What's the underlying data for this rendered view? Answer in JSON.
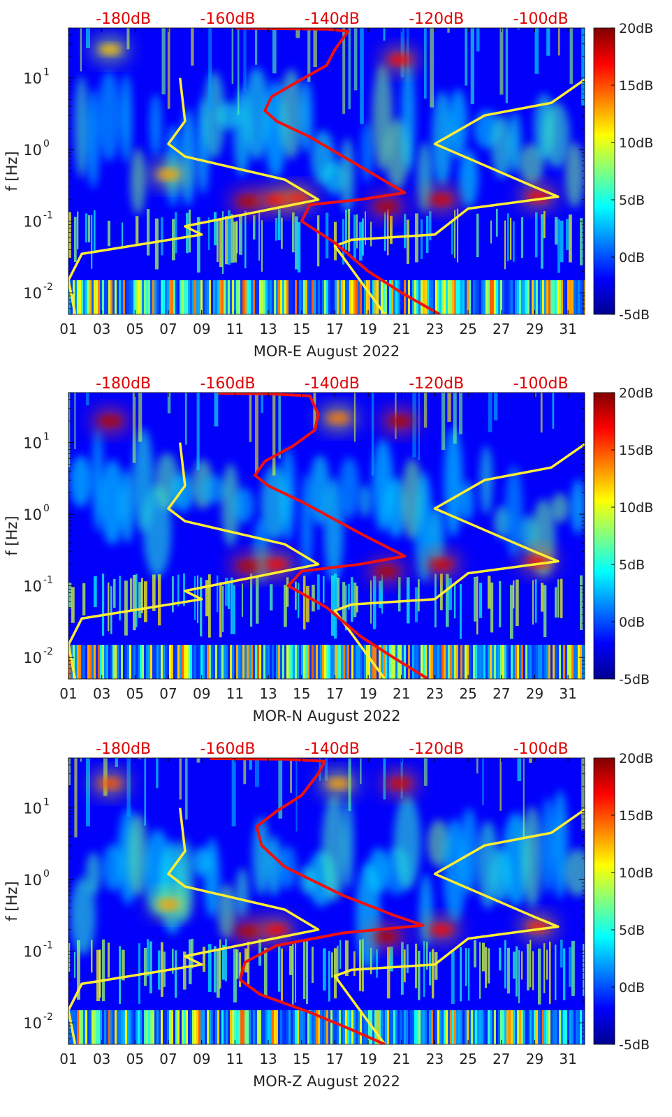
{
  "colormap_colors": [
    "#00008f",
    "#0000ff",
    "#0080ff",
    "#00ffff",
    "#80ff80",
    "#ffff00",
    "#ff8000",
    "#ff0000",
    "#800000"
  ],
  "model_line_colors": {
    "yellow": "#ffee33",
    "red": "#ee1111"
  },
  "top_axis_color": "#e00000",
  "chart_data": [
    {
      "type": "heatmap",
      "xlabel": "MOR-E August 2022",
      "ylabel": "f [Hz]",
      "x_ticks": [
        "01",
        "03",
        "05",
        "07",
        "09",
        "11",
        "13",
        "15",
        "17",
        "19",
        "21",
        "23",
        "25",
        "27",
        "29",
        "31"
      ],
      "x_tick_values": [
        1,
        3,
        5,
        7,
        9,
        11,
        13,
        15,
        17,
        19,
        21,
        23,
        25,
        27,
        29,
        31
      ],
      "xlim": [
        1,
        32
      ],
      "y_scale": "log",
      "y_ticks": [
        {
          "label": "10",
          "exp": "1",
          "value": 10
        },
        {
          "label": "10",
          "exp": "0",
          "value": 1
        },
        {
          "label": "10",
          "exp": "-1",
          "value": 0.1
        },
        {
          "label": "10",
          "exp": "-2",
          "value": 0.01
        }
      ],
      "ylim": [
        0.005,
        50
      ],
      "top_axis_ticks": [
        {
          "label": "-180dB",
          "x": 4.6
        },
        {
          "label": "-160dB",
          "x": 14.1
        },
        {
          "label": "-140dB",
          "x": 23.6
        },
        {
          "label": "-120dB",
          "x": 33.1
        },
        {
          "label": "-100dB",
          "x": 42.6
        }
      ],
      "colorbar": {
        "ticks": [
          "20dB",
          "15dB",
          "10dB",
          "5dB",
          "0dB",
          "-5dB"
        ],
        "tick_values": [
          20,
          15,
          10,
          5,
          0,
          -5
        ],
        "range": [
          -5,
          20
        ]
      },
      "hotspots": [
        {
          "day": 11.8,
          "freq": 0.19,
          "intensity": 19
        },
        {
          "day": 13.5,
          "freq": 0.2,
          "intensity": 17
        },
        {
          "day": 14.8,
          "freq": 0.21,
          "intensity": 16
        },
        {
          "day": 20.1,
          "freq": 0.16,
          "intensity": 19
        },
        {
          "day": 20.9,
          "freq": 18,
          "intensity": 17
        },
        {
          "day": 23.4,
          "freq": 0.2,
          "intensity": 18
        },
        {
          "day": 29.2,
          "freq": 0.22,
          "intensity": 17
        },
        {
          "day": 7.0,
          "freq": 0.45,
          "intensity": 13
        },
        {
          "day": 3.5,
          "freq": 25,
          "intensity": 12
        }
      ],
      "series": [
        {
          "color": "yellow",
          "points": [
            {
              "x": 1.4,
              "y": 0.005
            },
            {
              "x": 1.0,
              "y": 0.015
            },
            {
              "x": 1.8,
              "y": 0.035
            },
            {
              "x": 9.0,
              "y": 0.065
            },
            {
              "x": 8.0,
              "y": 0.085
            },
            {
              "x": 16.0,
              "y": 0.2
            },
            {
              "x": 14.0,
              "y": 0.38
            },
            {
              "x": 8.0,
              "y": 0.8
            },
            {
              "x": 7.0,
              "y": 1.2
            },
            {
              "x": 8.0,
              "y": 2.5
            },
            {
              "x": 7.7,
              "y": 10
            },
            null,
            {
              "x": 20.0,
              "y": 0.005
            },
            {
              "x": 17.0,
              "y": 0.045
            },
            {
              "x": 18.0,
              "y": 0.055
            },
            {
              "x": 23.0,
              "y": 0.065
            },
            {
              "x": 25.0,
              "y": 0.15
            },
            {
              "x": 30.4,
              "y": 0.22
            },
            {
              "x": 29.0,
              "y": 0.3
            },
            {
              "x": 23.0,
              "y": 1.2
            },
            {
              "x": 26.0,
              "y": 3.0
            },
            {
              "x": 30.0,
              "y": 4.5
            },
            {
              "x": 32.0,
              "y": 9.5
            }
          ]
        },
        {
          "color": "red",
          "points": [
            {
              "x": 23.3,
              "y": 0.005
            },
            {
              "x": 21.0,
              "y": 0.01
            },
            {
              "x": 19.0,
              "y": 0.02
            },
            {
              "x": 17.0,
              "y": 0.05
            },
            {
              "x": 15.0,
              "y": 0.1
            },
            {
              "x": 15.5,
              "y": 0.17
            },
            {
              "x": 18.5,
              "y": 0.2
            },
            {
              "x": 21.2,
              "y": 0.25
            },
            {
              "x": 19.0,
              "y": 0.5
            },
            {
              "x": 15.5,
              "y": 1.5
            },
            {
              "x": 13.5,
              "y": 2.5
            },
            {
              "x": 12.8,
              "y": 3.5
            },
            {
              "x": 13.2,
              "y": 5.5
            },
            {
              "x": 14.8,
              "y": 9
            },
            {
              "x": 16.5,
              "y": 15
            },
            {
              "x": 17.0,
              "y": 25
            },
            {
              "x": 17.8,
              "y": 45
            },
            {
              "x": 16.5,
              "y": 48
            },
            {
              "x": 13.0,
              "y": 49
            },
            {
              "x": 11.0,
              "y": 49.5
            }
          ]
        }
      ]
    },
    {
      "type": "heatmap",
      "xlabel": "MOR-N August 2022",
      "ylabel": "f [Hz]",
      "x_ticks": [
        "01",
        "03",
        "05",
        "07",
        "09",
        "11",
        "13",
        "15",
        "17",
        "19",
        "21",
        "23",
        "25",
        "27",
        "29",
        "31"
      ],
      "x_tick_values": [
        1,
        3,
        5,
        7,
        9,
        11,
        13,
        15,
        17,
        19,
        21,
        23,
        25,
        27,
        29,
        31
      ],
      "xlim": [
        1,
        32
      ],
      "y_scale": "log",
      "y_ticks": [
        {
          "label": "10",
          "exp": "1",
          "value": 10
        },
        {
          "label": "10",
          "exp": "0",
          "value": 1
        },
        {
          "label": "10",
          "exp": "-1",
          "value": 0.1
        },
        {
          "label": "10",
          "exp": "-2",
          "value": 0.01
        }
      ],
      "ylim": [
        0.005,
        50
      ],
      "top_axis_ticks": [
        {
          "label": "-180dB",
          "x": 4.6
        },
        {
          "label": "-160dB",
          "x": 14.1
        },
        {
          "label": "-140dB",
          "x": 23.6
        },
        {
          "label": "-120dB",
          "x": 33.1
        },
        {
          "label": "-100dB",
          "x": 42.6
        }
      ],
      "colorbar": {
        "ticks": [
          "20dB",
          "15dB",
          "10dB",
          "5dB",
          "0dB",
          "-5dB"
        ],
        "tick_values": [
          20,
          15,
          10,
          5,
          0,
          -5
        ],
        "range": [
          -5,
          20
        ]
      },
      "hotspots": [
        {
          "day": 3.5,
          "freq": 20,
          "intensity": 19
        },
        {
          "day": 11.8,
          "freq": 0.19,
          "intensity": 19
        },
        {
          "day": 13.5,
          "freq": 0.2,
          "intensity": 17
        },
        {
          "day": 20.1,
          "freq": 0.16,
          "intensity": 19
        },
        {
          "day": 20.9,
          "freq": 20,
          "intensity": 19
        },
        {
          "day": 23.4,
          "freq": 0.2,
          "intensity": 18
        },
        {
          "day": 29.2,
          "freq": 0.22,
          "intensity": 17
        },
        {
          "day": 17.2,
          "freq": 22,
          "intensity": 14
        }
      ],
      "series": [
        {
          "color": "yellow",
          "points": [
            {
              "x": 1.4,
              "y": 0.005
            },
            {
              "x": 1.0,
              "y": 0.015
            },
            {
              "x": 1.8,
              "y": 0.035
            },
            {
              "x": 9.0,
              "y": 0.065
            },
            {
              "x": 8.0,
              "y": 0.085
            },
            {
              "x": 16.0,
              "y": 0.2
            },
            {
              "x": 14.0,
              "y": 0.38
            },
            {
              "x": 8.0,
              "y": 0.8
            },
            {
              "x": 7.0,
              "y": 1.2
            },
            {
              "x": 8.0,
              "y": 2.5
            },
            {
              "x": 7.7,
              "y": 10
            },
            null,
            {
              "x": 20.0,
              "y": 0.005
            },
            {
              "x": 17.0,
              "y": 0.045
            },
            {
              "x": 18.0,
              "y": 0.055
            },
            {
              "x": 23.0,
              "y": 0.065
            },
            {
              "x": 25.0,
              "y": 0.15
            },
            {
              "x": 30.4,
              "y": 0.22
            },
            {
              "x": 29.0,
              "y": 0.3
            },
            {
              "x": 23.0,
              "y": 1.2
            },
            {
              "x": 26.0,
              "y": 3.0
            },
            {
              "x": 30.0,
              "y": 4.5
            },
            {
              "x": 32.0,
              "y": 9.5
            }
          ]
        },
        {
          "color": "red",
          "points": [
            {
              "x": 22.6,
              "y": 0.005
            },
            {
              "x": 20.5,
              "y": 0.01
            },
            {
              "x": 18.5,
              "y": 0.02
            },
            {
              "x": 16.5,
              "y": 0.05
            },
            {
              "x": 14.2,
              "y": 0.1
            },
            {
              "x": 15.0,
              "y": 0.16
            },
            {
              "x": 18.5,
              "y": 0.2
            },
            {
              "x": 21.2,
              "y": 0.26
            },
            {
              "x": 18.8,
              "y": 0.5
            },
            {
              "x": 15.0,
              "y": 1.5
            },
            {
              "x": 13.0,
              "y": 2.5
            },
            {
              "x": 12.2,
              "y": 3.5
            },
            {
              "x": 12.8,
              "y": 5.5
            },
            {
              "x": 14.5,
              "y": 9
            },
            {
              "x": 15.8,
              "y": 15
            },
            {
              "x": 16.0,
              "y": 25
            },
            {
              "x": 15.5,
              "y": 45
            },
            {
              "x": 13.0,
              "y": 48
            },
            {
              "x": 10.0,
              "y": 49
            }
          ]
        }
      ]
    },
    {
      "type": "heatmap",
      "xlabel": "MOR-Z August 2022",
      "ylabel": "f [Hz]",
      "x_ticks": [
        "01",
        "03",
        "05",
        "07",
        "09",
        "11",
        "13",
        "15",
        "17",
        "19",
        "21",
        "23",
        "25",
        "27",
        "29",
        "31"
      ],
      "x_tick_values": [
        1,
        3,
        5,
        7,
        9,
        11,
        13,
        15,
        17,
        19,
        21,
        23,
        25,
        27,
        29,
        31
      ],
      "xlim": [
        1,
        32
      ],
      "y_scale": "log",
      "y_ticks": [
        {
          "label": "10",
          "exp": "1",
          "value": 10
        },
        {
          "label": "10",
          "exp": "0",
          "value": 1
        },
        {
          "label": "10",
          "exp": "-1",
          "value": 0.1
        },
        {
          "label": "10",
          "exp": "-2",
          "value": 0.01
        }
      ],
      "ylim": [
        0.005,
        50
      ],
      "top_axis_ticks": [
        {
          "label": "-180dB",
          "x": 4.6
        },
        {
          "label": "-160dB",
          "x": 14.1
        },
        {
          "label": "-140dB",
          "x": 23.6
        },
        {
          "label": "-120dB",
          "x": 33.1
        },
        {
          "label": "-100dB",
          "x": 42.6
        }
      ],
      "colorbar": {
        "ticks": [
          "20dB",
          "15dB",
          "10dB",
          "5dB",
          "0dB",
          "-5dB"
        ],
        "tick_values": [
          20,
          15,
          10,
          5,
          0,
          -5
        ],
        "range": [
          -5,
          20
        ]
      },
      "hotspots": [
        {
          "day": 3.5,
          "freq": 22,
          "intensity": 15
        },
        {
          "day": 11.8,
          "freq": 0.19,
          "intensity": 19
        },
        {
          "day": 13.5,
          "freq": 0.2,
          "intensity": 17
        },
        {
          "day": 20.1,
          "freq": 0.16,
          "intensity": 19
        },
        {
          "day": 20.9,
          "freq": 22,
          "intensity": 18
        },
        {
          "day": 23.4,
          "freq": 0.2,
          "intensity": 17
        },
        {
          "day": 29.2,
          "freq": 0.22,
          "intensity": 16
        },
        {
          "day": 7.0,
          "freq": 0.45,
          "intensity": 13
        },
        {
          "day": 17.2,
          "freq": 22,
          "intensity": 13
        }
      ],
      "series": [
        {
          "color": "yellow",
          "points": [
            {
              "x": 1.4,
              "y": 0.005
            },
            {
              "x": 1.0,
              "y": 0.015
            },
            {
              "x": 1.8,
              "y": 0.035
            },
            {
              "x": 9.0,
              "y": 0.065
            },
            {
              "x": 8.0,
              "y": 0.085
            },
            {
              "x": 16.0,
              "y": 0.2
            },
            {
              "x": 14.0,
              "y": 0.38
            },
            {
              "x": 8.0,
              "y": 0.8
            },
            {
              "x": 7.0,
              "y": 1.2
            },
            {
              "x": 8.0,
              "y": 2.5
            },
            {
              "x": 7.7,
              "y": 10
            },
            null,
            {
              "x": 20.0,
              "y": 0.005
            },
            {
              "x": 17.0,
              "y": 0.045
            },
            {
              "x": 18.0,
              "y": 0.055
            },
            {
              "x": 23.0,
              "y": 0.065
            },
            {
              "x": 25.0,
              "y": 0.15
            },
            {
              "x": 30.4,
              "y": 0.22
            },
            {
              "x": 29.0,
              "y": 0.3
            },
            {
              "x": 23.0,
              "y": 1.2
            },
            {
              "x": 26.0,
              "y": 3.0
            },
            {
              "x": 30.0,
              "y": 4.5
            },
            {
              "x": 32.0,
              "y": 9.5
            }
          ]
        },
        {
          "color": "red",
          "points": [
            {
              "x": 20.0,
              "y": 0.005
            },
            {
              "x": 18.0,
              "y": 0.008
            },
            {
              "x": 15.5,
              "y": 0.014
            },
            {
              "x": 12.5,
              "y": 0.025
            },
            {
              "x": 11.3,
              "y": 0.04
            },
            {
              "x": 11.6,
              "y": 0.07
            },
            {
              "x": 13.5,
              "y": 0.12
            },
            {
              "x": 17.5,
              "y": 0.18
            },
            {
              "x": 22.3,
              "y": 0.23
            },
            {
              "x": 20.5,
              "y": 0.32
            },
            {
              "x": 17.5,
              "y": 0.6
            },
            {
              "x": 14.0,
              "y": 1.5
            },
            {
              "x": 12.6,
              "y": 3
            },
            {
              "x": 12.3,
              "y": 5.5
            },
            {
              "x": 13.5,
              "y": 9
            },
            {
              "x": 15.0,
              "y": 15
            },
            {
              "x": 16.0,
              "y": 30
            },
            {
              "x": 16.4,
              "y": 45
            },
            {
              "x": 14.0,
              "y": 48
            },
            {
              "x": 9.5,
              "y": 49
            }
          ]
        }
      ]
    }
  ]
}
